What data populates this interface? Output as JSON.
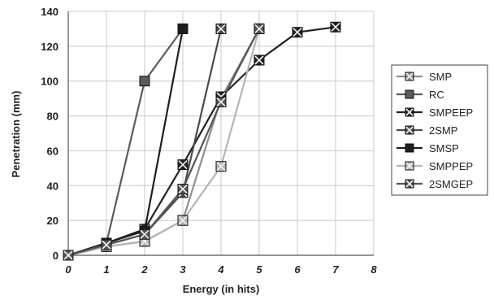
{
  "chart_data": {
    "type": "line",
    "title": "",
    "xlabel": "Energy (in hits)",
    "ylabel": "Penetration (mm)",
    "xlim": [
      0,
      8
    ],
    "ylim": [
      0,
      140
    ],
    "xticks": [
      "0",
      "1",
      "2",
      "3",
      "4",
      "5",
      "6",
      "7",
      "8"
    ],
    "yticks": [
      "0",
      "20",
      "40",
      "60",
      "80",
      "100",
      "120",
      "140"
    ],
    "grid": true,
    "legend_position": "right",
    "series": [
      {
        "name": "SMP",
        "color": "#8f8f8f",
        "marker": "x-box",
        "points": [
          [
            0,
            0
          ],
          [
            1,
            5
          ],
          [
            2,
            8
          ],
          [
            3,
            20
          ],
          [
            4,
            90
          ],
          [
            5,
            130
          ]
        ]
      },
      {
        "name": "RC",
        "color": "#5b5b5b",
        "marker": "square",
        "points": [
          [
            0,
            0
          ],
          [
            1,
            7
          ],
          [
            2,
            100
          ],
          [
            3,
            130
          ]
        ]
      },
      {
        "name": "SMPEEP",
        "color": "#222222",
        "marker": "x-box",
        "points": [
          [
            0,
            0
          ],
          [
            1,
            7
          ],
          [
            2,
            15
          ],
          [
            3,
            52
          ],
          [
            4,
            91
          ],
          [
            5,
            112
          ],
          [
            6,
            128
          ],
          [
            7,
            131
          ]
        ]
      },
      {
        "name": "2SMP",
        "color": "#4a4a4a",
        "marker": "x-box",
        "points": [
          [
            0,
            0
          ],
          [
            1,
            6
          ],
          [
            2,
            12
          ],
          [
            3,
            36
          ],
          [
            4,
            130
          ]
        ]
      },
      {
        "name": "SMSP",
        "color": "#1e1e1e",
        "marker": "square",
        "points": [
          [
            0,
            0
          ],
          [
            1,
            7
          ],
          [
            2,
            14
          ],
          [
            3,
            130
          ]
        ]
      },
      {
        "name": "SMPPEP",
        "color": "#b5b5b5",
        "marker": "x-box",
        "points": [
          [
            0,
            0
          ],
          [
            1,
            5
          ],
          [
            2,
            8
          ],
          [
            3,
            20
          ],
          [
            4,
            51
          ],
          [
            5,
            130
          ]
        ]
      },
      {
        "name": "2SMGEP",
        "color": "#555555",
        "marker": "x-box",
        "points": [
          [
            0,
            0
          ],
          [
            1,
            6
          ],
          [
            2,
            12
          ],
          [
            3,
            38
          ],
          [
            4,
            88
          ],
          [
            5,
            130
          ]
        ]
      }
    ]
  }
}
